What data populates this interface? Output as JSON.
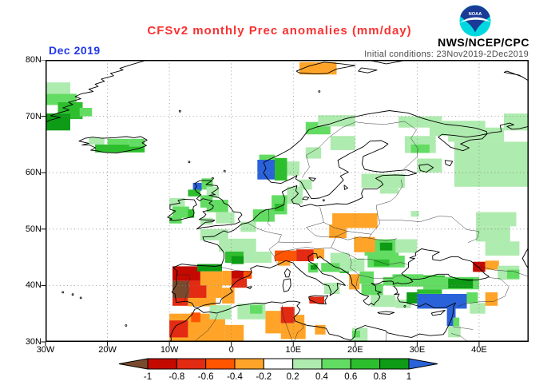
{
  "header": {
    "title": "CFSv2 monthly Prec anomalies (mm/day)",
    "title_color": "#F93232",
    "date_label": "Dec 2019",
    "date_color": "#2239E8",
    "agency": "NWS/NCEP/CPC",
    "init_conditions": "Initial conditions: 23Nov2019-2Dec2019",
    "init_color": "#4a4a4a",
    "logo_text": "NOAA",
    "logo_dark_blue": "#1A3A96",
    "logo_cyan": "#00D8E0"
  },
  "chart_data": {
    "type": "heatmap",
    "title": "CFSv2 monthly Prec anomalies (mm/day)",
    "period": "Dec 2019",
    "units": "mm/day",
    "region": "Europe",
    "lon_range": [
      -30,
      48
    ],
    "lat_range": [
      30,
      80
    ],
    "grid": "dotted 10-degree",
    "x_ticks": [
      "30W",
      "20W",
      "10W",
      "0",
      "10E",
      "20E",
      "30E",
      "40E"
    ],
    "x_tick_lons": [
      -30,
      -20,
      -10,
      0,
      10,
      20,
      30,
      40
    ],
    "y_ticks": [
      "80N",
      "70N",
      "60N",
      "50N",
      "40N",
      "30N"
    ],
    "y_tick_lats": [
      80,
      70,
      60,
      50,
      40,
      30
    ],
    "colorbar": {
      "labels": [
        "-1",
        "-0.8",
        "-0.6",
        "-0.4",
        "-0.2",
        "0.2",
        "0.4",
        "0.6",
        "0.8",
        "1"
      ],
      "below_color": "#7A4A2E",
      "above_color": "#2A62D9",
      "segment_colors": [
        "#C40A00",
        "#E32A12",
        "#FF5500",
        "#FFA428",
        "#FFFFFF",
        "#AEEBAE",
        "#63DC63",
        "#2DBE2D",
        "#0E9B16"
      ]
    },
    "palette": {
      "br": "#7A4A2E",
      "r4": "#C40A00",
      "r3": "#E32A12",
      "r2": "#FF5500",
      "r1": "#FFA428",
      "g1": "#AEEBAE",
      "g2": "#63DC63",
      "g3": "#2DBE2D",
      "g4": "#0E9B16",
      "bl": "#2A62D9"
    },
    "anomaly_cells": [
      [
        -30,
        -26,
        76,
        74,
        "g1"
      ],
      [
        -30,
        -25,
        74,
        72,
        "g2"
      ],
      [
        -28,
        -24,
        72.5,
        70.5,
        "g3"
      ],
      [
        -30,
        -26,
        70.5,
        67.5,
        "g4"
      ],
      [
        -26,
        -24,
        71,
        69.5,
        "g3"
      ],
      [
        -24.5,
        -22.5,
        71.5,
        70,
        "g2"
      ],
      [
        -23,
        -20.5,
        66.2,
        65,
        "g1"
      ],
      [
        -22,
        -14,
        65,
        63.6,
        "g3"
      ],
      [
        -20,
        -16.5,
        66,
        65,
        "g2"
      ],
      [
        -16.5,
        -14,
        66,
        64.6,
        "g2"
      ],
      [
        11,
        17,
        79.6,
        77.4,
        "r1"
      ],
      [
        4.2,
        7,
        62.3,
        58.8,
        "bl"
      ],
      [
        7,
        9,
        62.6,
        58.6,
        "g3"
      ],
      [
        4.5,
        7,
        63.2,
        62.3,
        "g2"
      ],
      [
        9,
        11,
        62,
        59.5,
        "g1"
      ],
      [
        12,
        16,
        69,
        66.8,
        "g2"
      ],
      [
        14,
        20,
        70.2,
        68.2,
        "g1"
      ],
      [
        16,
        20,
        66.5,
        64,
        "g1"
      ],
      [
        12,
        14.5,
        64.5,
        62.5,
        "g1"
      ],
      [
        11,
        13,
        58.8,
        57,
        "g1"
      ],
      [
        27,
        34,
        70,
        68,
        "g1"
      ],
      [
        32,
        41,
        69.2,
        66.5,
        "g1"
      ],
      [
        28,
        33,
        66.5,
        63.5,
        "g1"
      ],
      [
        29,
        32,
        65,
        63.5,
        "g2"
      ],
      [
        35,
        44,
        68,
        65.5,
        "g1"
      ],
      [
        44,
        48,
        70.5,
        67.5,
        "g1"
      ],
      [
        36,
        48,
        65.5,
        62.5,
        "g1"
      ],
      [
        30,
        34,
        62.5,
        60,
        "g1"
      ],
      [
        36,
        48,
        62.5,
        57.5,
        "g1"
      ],
      [
        21,
        28,
        59.8,
        57.3,
        "g1"
      ],
      [
        24,
        27,
        57.3,
        56.3,
        "g1"
      ],
      [
        -6.2,
        -4.8,
        58.2,
        56.8,
        "bl"
      ],
      [
        -4.8,
        -3,
        59,
        57,
        "g2"
      ],
      [
        -7,
        -5,
        57,
        55.8,
        "g3"
      ],
      [
        -4,
        -2,
        57.5,
        55.5,
        "g1"
      ],
      [
        -10,
        -7.5,
        55.5,
        54,
        "g1"
      ],
      [
        -9.5,
        -6.8,
        54,
        52,
        "g2"
      ],
      [
        -7,
        -6,
        53.5,
        52,
        "g3"
      ],
      [
        -10,
        -8,
        52.3,
        51,
        "g2"
      ],
      [
        -5,
        -3,
        56,
        53.8,
        "g2"
      ],
      [
        -4,
        -0.5,
        55.2,
        53,
        "g2"
      ],
      [
        -2.5,
        0.5,
        53,
        51,
        "g1"
      ],
      [
        -5,
        -3,
        52,
        50.8,
        "g1"
      ],
      [
        3.5,
        7,
        53.5,
        51.3,
        "g2"
      ],
      [
        1.5,
        4,
        51.3,
        49.5,
        "g1"
      ],
      [
        6.5,
        9,
        56,
        52.6,
        "g2"
      ],
      [
        7,
        8.5,
        54.5,
        53.2,
        "g3"
      ],
      [
        9,
        11.5,
        57.5,
        54.5,
        "g1"
      ],
      [
        -5,
        -0.5,
        50,
        48,
        "g1"
      ],
      [
        -2,
        4,
        48.3,
        46,
        "g1"
      ],
      [
        -1,
        2,
        46,
        44,
        "g3"
      ],
      [
        0,
        2,
        45.2,
        43.8,
        "g4"
      ],
      [
        2,
        6.5,
        46,
        44,
        "g1"
      ],
      [
        7,
        10.5,
        46.2,
        44.3,
        "r2"
      ],
      [
        10.5,
        13.3,
        46.4,
        44.3,
        "r3"
      ],
      [
        13.3,
        15,
        46.5,
        44.8,
        "r1"
      ],
      [
        7.5,
        9.5,
        44.3,
        43.5,
        "r1"
      ],
      [
        -9.5,
        -5,
        43.4,
        40.8,
        "r4"
      ],
      [
        -5.5,
        -1.5,
        43.8,
        42.5,
        "g4"
      ],
      [
        -9.5,
        -6.8,
        40.8,
        37.8,
        "br"
      ],
      [
        -6.8,
        -4,
        40.8,
        37.8,
        "r3"
      ],
      [
        -5,
        -1.5,
        42.5,
        40,
        "r1"
      ],
      [
        -4,
        -1.5,
        40,
        37.8,
        "r1"
      ],
      [
        -9.5,
        -7,
        37.8,
        36.4,
        "r3"
      ],
      [
        -7,
        -2.5,
        37.8,
        36.3,
        "r1"
      ],
      [
        0,
        2,
        42.6,
        41.2,
        "r4"
      ],
      [
        0,
        2.5,
        41.2,
        39.6,
        "r3"
      ],
      [
        2,
        3.3,
        42.6,
        41.2,
        "r2"
      ],
      [
        -1.5,
        0.5,
        39.6,
        36.8,
        "r1"
      ],
      [
        -1.5,
        0,
        42.6,
        40,
        "r1"
      ],
      [
        -10,
        -1,
        35,
        30,
        "r1"
      ],
      [
        -10,
        -7,
        33.8,
        30.8,
        "r3"
      ],
      [
        -6.5,
        -5,
        35.2,
        33.5,
        "r2"
      ],
      [
        -1,
        2,
        33,
        30.2,
        "r1"
      ],
      [
        -3.5,
        0,
        36.5,
        34,
        "g1"
      ],
      [
        1,
        5.5,
        36.8,
        34,
        "g1"
      ],
      [
        3,
        5,
        36.5,
        35,
        "g2"
      ],
      [
        5.5,
        8,
        35.5,
        31.5,
        "r1"
      ],
      [
        8,
        10.2,
        36.2,
        33.3,
        "r3"
      ],
      [
        8,
        12,
        33.3,
        30.5,
        "r1"
      ],
      [
        10.2,
        11.8,
        34.8,
        33.3,
        "r1"
      ],
      [
        13.5,
        15.2,
        33,
        31.3,
        "r1"
      ],
      [
        19.5,
        22,
        32.5,
        30.2,
        "g1"
      ],
      [
        19.5,
        20.8,
        32,
        30.8,
        "g2"
      ],
      [
        12.6,
        15,
        38,
        36.8,
        "r3"
      ],
      [
        15,
        17.5,
        40.5,
        38.5,
        "g1"
      ],
      [
        12.4,
        14,
        44,
        42.3,
        "g2"
      ],
      [
        12.8,
        13.8,
        43.6,
        42.8,
        "g4"
      ],
      [
        14.5,
        17.5,
        44,
        42.4,
        "g2"
      ],
      [
        16,
        19,
        45.8,
        44,
        "g1"
      ],
      [
        17.5,
        19,
        43.2,
        42.2,
        "g3"
      ],
      [
        19,
        20.7,
        42,
        39.3,
        "r1"
      ],
      [
        20.7,
        23,
        42.5,
        40.3,
        "g2"
      ],
      [
        17.5,
        21.5,
        44.8,
        42.5,
        "g1"
      ],
      [
        21,
        24.5,
        40.3,
        38.3,
        "g2"
      ],
      [
        22.5,
        26.5,
        38.3,
        36.2,
        "g1"
      ],
      [
        24.5,
        28.5,
        41.5,
        40,
        "g2"
      ],
      [
        26.5,
        29,
        37.5,
        36,
        "g1"
      ],
      [
        21.5,
        27,
        48.2,
        45.3,
        "g2"
      ],
      [
        24,
        26,
        47.6,
        46.2,
        "g4"
      ],
      [
        26.5,
        30,
        48.2,
        45.8,
        "g1"
      ],
      [
        22,
        28,
        45.3,
        43.2,
        "g2"
      ],
      [
        23,
        25.5,
        44.6,
        43.4,
        "g3"
      ],
      [
        16.3,
        23.6,
        52.8,
        50.2,
        "r1"
      ],
      [
        15.8,
        18.6,
        50.8,
        48.4,
        "r1"
      ],
      [
        19.8,
        23.2,
        48.6,
        45.9,
        "r1"
      ],
      [
        29,
        30.3,
        53.2,
        52.2,
        "g1"
      ],
      [
        39.5,
        46,
        53,
        50.5,
        "g1"
      ],
      [
        39.5,
        45,
        50.5,
        47.8,
        "g1"
      ],
      [
        41,
        46.5,
        47.8,
        45.3,
        "g1"
      ],
      [
        39,
        41,
        44.2,
        42.4,
        "r4"
      ],
      [
        41,
        43.2,
        44.4,
        42.8,
        "r1"
      ],
      [
        43,
        46.5,
        43.5,
        41,
        "g1"
      ],
      [
        44.5,
        46.5,
        42.8,
        41.2,
        "g2"
      ],
      [
        26,
        31,
        42,
        39.8,
        "g2"
      ],
      [
        31,
        34.5,
        41.8,
        40.2,
        "g3"
      ],
      [
        31,
        40,
        41.5,
        39.3,
        "g2"
      ],
      [
        35,
        39,
        41.2,
        39.5,
        "g4"
      ],
      [
        30,
        34,
        39.3,
        38.5,
        "g3"
      ],
      [
        28.3,
        30.2,
        38.8,
        36.8,
        "g4"
      ],
      [
        30,
        38,
        38.5,
        35.9,
        "bl"
      ],
      [
        34.8,
        36.2,
        36,
        32.8,
        "bl"
      ],
      [
        38,
        39.8,
        38.8,
        36.9,
        "g2"
      ],
      [
        38.5,
        41,
        36.9,
        35,
        "g1"
      ],
      [
        41,
        43,
        38.8,
        36.4,
        "r1"
      ],
      [
        35,
        37,
        32.8,
        30.8,
        "g1"
      ],
      [
        35.8,
        36.8,
        34.3,
        32.8,
        "g2"
      ]
    ]
  }
}
